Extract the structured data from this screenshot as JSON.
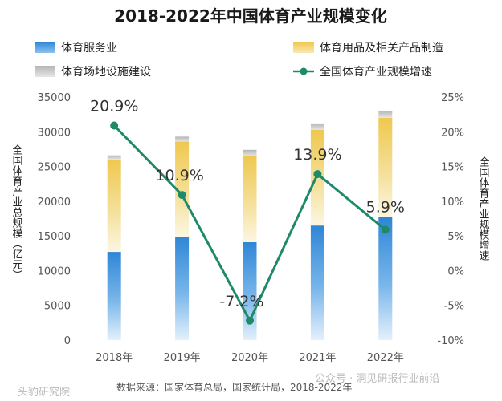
{
  "chart_data": {
    "type": "bar",
    "title": "2018-2022年中国体育产业规模变化",
    "categories": [
      "2018年",
      "2019年",
      "2020年",
      "2021年",
      "2022年"
    ],
    "series": [
      {
        "name": "体育服务业",
        "kind": "bar",
        "axis": "left",
        "color": "#3a8fd9",
        "values": [
          12700,
          14900,
          14100,
          16500,
          17700
        ]
      },
      {
        "name": "体育用品及相关产品制造",
        "kind": "bar",
        "axis": "left",
        "color": "#f0cc5a",
        "values": [
          13300,
          13700,
          12400,
          13800,
          14300
        ]
      },
      {
        "name": "体育场地设施建设",
        "kind": "bar",
        "axis": "left",
        "color": "#c4c4c4",
        "values": [
          600,
          700,
          900,
          900,
          1000
        ]
      },
      {
        "name": "全国体育产业规模增速",
        "kind": "line",
        "axis": "right",
        "color": "#1f8a6a",
        "values": [
          20.9,
          10.9,
          -7.2,
          13.9,
          5.9
        ],
        "labels": [
          "20.9%",
          "10.9%",
          "-7.2%",
          "13.9%",
          "5.9%"
        ]
      }
    ],
    "ylabel": "全国体育产业总规模（亿元）",
    "y2label": "全国体育产业规模增速",
    "ylim": [
      0,
      35000
    ],
    "y2lim": [
      -10,
      25
    ],
    "yticks": [
      "0",
      "5000",
      "10000",
      "15000",
      "20000",
      "25000",
      "30000",
      "35000"
    ],
    "y2ticks": [
      "-10%",
      "-5%",
      "0%",
      "5%",
      "10%",
      "15%",
      "20%",
      "25%"
    ],
    "legend": "top"
  },
  "source": "数据来源：国家体育总局，国家统计局，2018-2022年",
  "watermark_left": "头豹研究院",
  "watermark_right": "公众号 · 洞见研报行业前沿"
}
